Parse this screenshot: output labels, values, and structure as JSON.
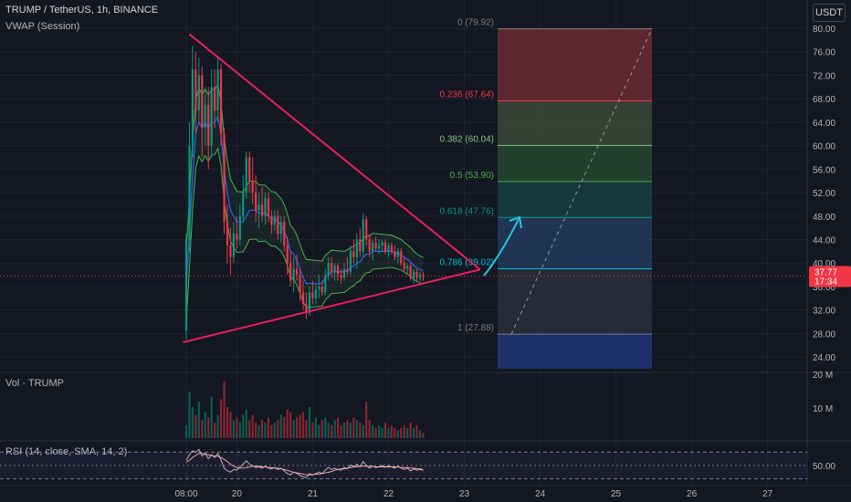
{
  "header": {
    "symbol_line": "TRUMP / TetherUS, 1h, BINANCE",
    "indicator": "VWAP (Session)",
    "currency_button": "USDT"
  },
  "volume_pane": {
    "label": "Vol · TRUMP",
    "ticks": [
      "20 M",
      "10 M"
    ]
  },
  "rsi_pane": {
    "label": "RSI (14, close, SMA, 14, 2)",
    "tick": "50.00"
  },
  "price_axis": {
    "ticks": [
      "80.00",
      "76.00",
      "72.00",
      "68.00",
      "64.00",
      "60.00",
      "56.00",
      "52.00",
      "48.00",
      "44.00",
      "40.00",
      "36.00",
      "32.00",
      "28.00",
      "24.00"
    ]
  },
  "last_price": {
    "price": "37.77",
    "countdown": "17:34",
    "color": "#f23645"
  },
  "time_axis": {
    "ticks": [
      {
        "label": "08:00",
        "pos": 0.0
      },
      {
        "label": "20",
        "pos": 16.0
      },
      {
        "label": "21",
        "pos": 40.0
      },
      {
        "label": "22",
        "pos": 64.0
      },
      {
        "label": "23",
        "pos": 88.0
      },
      {
        "label": "24",
        "pos": 112.0
      },
      {
        "label": "25",
        "pos": 136.0
      },
      {
        "label": "26",
        "pos": 160.0
      },
      {
        "label": "27",
        "pos": 184.0
      }
    ]
  },
  "fib_levels": [
    {
      "label": "0 (79.92)",
      "price": 79.92,
      "color": "#787b86"
    },
    {
      "label": "0.236 (67.64)",
      "price": 67.64,
      "color": "#f23645"
    },
    {
      "label": "0.382 (60.04)",
      "price": 60.04,
      "color": "#81c784"
    },
    {
      "label": "0.5 (53.90)",
      "price": 53.9,
      "color": "#4caf50"
    },
    {
      "label": "0.618 (47.76)",
      "price": 47.76,
      "color": "#089981"
    },
    {
      "label": "0.786 (39.02)",
      "price": 39.02,
      "color": "#00bcd4"
    },
    {
      "label": "1 (27.88)",
      "price": 27.88,
      "color": "#787b86"
    }
  ],
  "fib_bands": [
    {
      "from": 79.92,
      "to": 67.64,
      "color": "#6b2a33"
    },
    {
      "from": 67.64,
      "to": 60.04,
      "color": "#3b4a3a"
    },
    {
      "from": 60.04,
      "to": 53.9,
      "color": "#27462f"
    },
    {
      "from": 53.9,
      "to": 47.76,
      "color": "#17403f"
    },
    {
      "from": 47.76,
      "to": 39.02,
      "color": "#23395d"
    },
    {
      "from": 39.02,
      "to": 27.88,
      "color": "#2c2f3b"
    },
    {
      "from": 27.88,
      "to": 22.0,
      "color": "#1e3577"
    }
  ],
  "chart_data": {
    "type": "candlestick",
    "title": "TRUMP / TetherUS, 1h, BINANCE",
    "ylim": [
      22.0,
      81.0
    ],
    "x_unit": "hours since 08:00",
    "candles": [
      {
        "t": 0,
        "o": 28.5,
        "h": 45.0,
        "l": 27.0,
        "c": 44.0
      },
      {
        "t": 1,
        "o": 44.0,
        "h": 64.0,
        "l": 42.0,
        "c": 60.0
      },
      {
        "t": 2,
        "o": 60.0,
        "h": 77.0,
        "l": 58.0,
        "c": 73.0
      },
      {
        "t": 3,
        "o": 73.0,
        "h": 76.0,
        "l": 62.0,
        "c": 66.0
      },
      {
        "t": 4,
        "o": 66.0,
        "h": 75.0,
        "l": 64.0,
        "c": 72.0
      },
      {
        "t": 5,
        "o": 72.0,
        "h": 73.5,
        "l": 58.0,
        "c": 63.0
      },
      {
        "t": 6,
        "o": 63.0,
        "h": 70.0,
        "l": 60.0,
        "c": 67.0
      },
      {
        "t": 7,
        "o": 67.0,
        "h": 70.0,
        "l": 56.0,
        "c": 60.0
      },
      {
        "t": 8,
        "o": 60.0,
        "h": 73.0,
        "l": 58.0,
        "c": 70.0
      },
      {
        "t": 9,
        "o": 70.0,
        "h": 73.0,
        "l": 63.0,
        "c": 66.0
      },
      {
        "t": 10,
        "o": 66.0,
        "h": 75.0,
        "l": 64.0,
        "c": 73.0
      },
      {
        "t": 11,
        "o": 73.0,
        "h": 74.0,
        "l": 60.0,
        "c": 62.0
      },
      {
        "t": 12,
        "o": 62.0,
        "h": 63.0,
        "l": 45.0,
        "c": 47.0
      },
      {
        "t": 13,
        "o": 47.0,
        "h": 50.0,
        "l": 40.0,
        "c": 43.0
      },
      {
        "t": 14,
        "o": 43.0,
        "h": 46.0,
        "l": 38.0,
        "c": 41.0
      },
      {
        "t": 15,
        "o": 41.0,
        "h": 47.0,
        "l": 40.0,
        "c": 45.0
      },
      {
        "t": 16,
        "o": 45.0,
        "h": 48.0,
        "l": 42.5,
        "c": 44.0
      },
      {
        "t": 17,
        "o": 44.0,
        "h": 50.0,
        "l": 43.0,
        "c": 48.0
      },
      {
        "t": 18,
        "o": 48.0,
        "h": 55.0,
        "l": 47.0,
        "c": 52.0
      },
      {
        "t": 19,
        "o": 52.0,
        "h": 59.0,
        "l": 51.0,
        "c": 58.0
      },
      {
        "t": 20,
        "o": 58.0,
        "h": 59.0,
        "l": 52.0,
        "c": 54.0
      },
      {
        "t": 21,
        "o": 54.0,
        "h": 58.0,
        "l": 50.0,
        "c": 52.0
      },
      {
        "t": 22,
        "o": 52.0,
        "h": 55.0,
        "l": 47.0,
        "c": 49.0
      },
      {
        "t": 23,
        "o": 49.0,
        "h": 52.0,
        "l": 46.0,
        "c": 50.0
      },
      {
        "t": 24,
        "o": 50.0,
        "h": 53.0,
        "l": 47.0,
        "c": 48.0
      },
      {
        "t": 25,
        "o": 48.0,
        "h": 52.0,
        "l": 46.5,
        "c": 51.0
      },
      {
        "t": 26,
        "o": 51.0,
        "h": 52.0,
        "l": 47.0,
        "c": 48.0
      },
      {
        "t": 27,
        "o": 48.0,
        "h": 49.0,
        "l": 45.0,
        "c": 46.5
      },
      {
        "t": 28,
        "o": 46.5,
        "h": 49.0,
        "l": 45.5,
        "c": 48.0
      },
      {
        "t": 29,
        "o": 48.0,
        "h": 49.0,
        "l": 44.0,
        "c": 45.0
      },
      {
        "t": 30,
        "o": 45.0,
        "h": 48.0,
        "l": 43.5,
        "c": 47.0
      },
      {
        "t": 31,
        "o": 47.0,
        "h": 48.0,
        "l": 42.0,
        "c": 43.0
      },
      {
        "t": 32,
        "o": 43.0,
        "h": 44.5,
        "l": 38.0,
        "c": 40.0
      },
      {
        "t": 33,
        "o": 40.0,
        "h": 42.0,
        "l": 36.0,
        "c": 37.0
      },
      {
        "t": 34,
        "o": 37.0,
        "h": 41.0,
        "l": 35.0,
        "c": 39.0
      },
      {
        "t": 35,
        "o": 39.0,
        "h": 41.5,
        "l": 37.0,
        "c": 38.0
      },
      {
        "t": 36,
        "o": 38.0,
        "h": 39.0,
        "l": 33.5,
        "c": 35.0
      },
      {
        "t": 37,
        "o": 35.0,
        "h": 37.0,
        "l": 32.0,
        "c": 33.0
      },
      {
        "t": 38,
        "o": 33.0,
        "h": 35.0,
        "l": 30.5,
        "c": 31.5
      },
      {
        "t": 39,
        "o": 31.5,
        "h": 36.0,
        "l": 31.0,
        "c": 35.0
      },
      {
        "t": 40,
        "o": 35.0,
        "h": 37.0,
        "l": 33.0,
        "c": 34.0
      },
      {
        "t": 41,
        "o": 34.0,
        "h": 36.5,
        "l": 33.0,
        "c": 35.5
      },
      {
        "t": 42,
        "o": 35.5,
        "h": 38.0,
        "l": 34.0,
        "c": 36.0
      },
      {
        "t": 43,
        "o": 36.0,
        "h": 37.0,
        "l": 34.5,
        "c": 35.0
      },
      {
        "t": 44,
        "o": 35.0,
        "h": 39.0,
        "l": 34.5,
        "c": 38.0
      },
      {
        "t": 45,
        "o": 38.0,
        "h": 41.0,
        "l": 37.0,
        "c": 40.0
      },
      {
        "t": 46,
        "o": 40.0,
        "h": 41.0,
        "l": 37.5,
        "c": 38.5
      },
      {
        "t": 47,
        "o": 38.5,
        "h": 40.0,
        "l": 37.0,
        "c": 39.5
      },
      {
        "t": 48,
        "o": 39.5,
        "h": 40.0,
        "l": 37.0,
        "c": 38.0
      },
      {
        "t": 49,
        "o": 38.0,
        "h": 39.0,
        "l": 36.5,
        "c": 37.5
      },
      {
        "t": 50,
        "o": 37.5,
        "h": 40.0,
        "l": 37.0,
        "c": 39.0
      },
      {
        "t": 51,
        "o": 39.0,
        "h": 41.0,
        "l": 38.0,
        "c": 38.5
      },
      {
        "t": 52,
        "o": 38.5,
        "h": 43.0,
        "l": 38.0,
        "c": 42.0
      },
      {
        "t": 53,
        "o": 42.0,
        "h": 44.0,
        "l": 40.0,
        "c": 41.0
      },
      {
        "t": 54,
        "o": 41.0,
        "h": 45.0,
        "l": 39.0,
        "c": 44.0
      },
      {
        "t": 55,
        "o": 44.0,
        "h": 46.0,
        "l": 41.0,
        "c": 42.0
      },
      {
        "t": 56,
        "o": 42.0,
        "h": 48.5,
        "l": 41.0,
        "c": 47.5
      },
      {
        "t": 57,
        "o": 47.5,
        "h": 48.0,
        "l": 43.0,
        "c": 44.0
      },
      {
        "t": 58,
        "o": 44.0,
        "h": 45.0,
        "l": 41.0,
        "c": 42.0
      },
      {
        "t": 59,
        "o": 42.0,
        "h": 44.0,
        "l": 40.5,
        "c": 43.5
      },
      {
        "t": 60,
        "o": 43.5,
        "h": 44.5,
        "l": 42.0,
        "c": 42.5
      },
      {
        "t": 61,
        "o": 42.5,
        "h": 44.0,
        "l": 41.5,
        "c": 43.0
      },
      {
        "t": 62,
        "o": 43.0,
        "h": 44.0,
        "l": 42.0,
        "c": 43.5
      },
      {
        "t": 63,
        "o": 43.5,
        "h": 44.0,
        "l": 41.5,
        "c": 42.0
      },
      {
        "t": 64,
        "o": 42.0,
        "h": 43.5,
        "l": 41.0,
        "c": 43.0
      },
      {
        "t": 65,
        "o": 43.0,
        "h": 43.5,
        "l": 41.5,
        "c": 42.0
      },
      {
        "t": 66,
        "o": 42.0,
        "h": 43.0,
        "l": 40.5,
        "c": 41.0
      },
      {
        "t": 67,
        "o": 41.0,
        "h": 42.5,
        "l": 40.0,
        "c": 42.0
      },
      {
        "t": 68,
        "o": 42.0,
        "h": 42.5,
        "l": 39.5,
        "c": 40.0
      },
      {
        "t": 69,
        "o": 40.0,
        "h": 41.0,
        "l": 38.5,
        "c": 39.0
      },
      {
        "t": 70,
        "o": 39.0,
        "h": 40.0,
        "l": 38.0,
        "c": 39.5
      },
      {
        "t": 71,
        "o": 39.5,
        "h": 40.0,
        "l": 37.0,
        "c": 37.5
      },
      {
        "t": 72,
        "o": 37.5,
        "h": 39.0,
        "l": 36.5,
        "c": 38.5
      },
      {
        "t": 73,
        "o": 38.5,
        "h": 39.0,
        "l": 37.0,
        "c": 37.5
      },
      {
        "t": 74,
        "o": 37.5,
        "h": 38.5,
        "l": 37.0,
        "c": 38.0
      },
      {
        "t": 75,
        "o": 38.0,
        "h": 38.5,
        "l": 37.0,
        "c": 37.77
      }
    ],
    "volume": [
      5,
      18,
      12,
      9,
      14,
      7,
      10,
      8,
      16,
      6,
      9,
      15,
      22,
      12,
      10,
      7,
      8,
      6,
      9,
      11,
      7,
      9,
      6,
      5,
      7,
      6,
      8,
      5,
      6,
      7,
      9,
      8,
      11,
      10,
      7,
      8,
      9,
      10,
      7,
      12,
      6,
      8,
      5,
      7,
      8,
      6,
      5,
      7,
      8,
      5,
      6,
      7,
      6,
      8,
      7,
      6,
      5,
      14,
      7,
      5,
      4,
      5,
      4,
      6,
      4,
      5,
      4,
      3,
      4,
      5,
      4,
      6,
      4,
      5,
      3,
      2
    ],
    "rsi": [
      58,
      66,
      72,
      70,
      74,
      64,
      68,
      60,
      66,
      62,
      68,
      58,
      46,
      42,
      40,
      44,
      43,
      48,
      52,
      57,
      52,
      50,
      47,
      48,
      46,
      49,
      46,
      45,
      47,
      44,
      46,
      42,
      38,
      36,
      40,
      38,
      35,
      33,
      32,
      38,
      36,
      38,
      40,
      38,
      43,
      47,
      44,
      46,
      44,
      43,
      47,
      45,
      51,
      48,
      52,
      48,
      56,
      50,
      46,
      49,
      47,
      48,
      50,
      47,
      50,
      48,
      46,
      49,
      46,
      44,
      46,
      42,
      45,
      43,
      44,
      43
    ],
    "rsi_ma": [
      55,
      58,
      62,
      65,
      68,
      68,
      67,
      66,
      65,
      64,
      64,
      62,
      59,
      56,
      52,
      49,
      47,
      46,
      46,
      47,
      48,
      49,
      49,
      49,
      48,
      48,
      47,
      47,
      46,
      46,
      45,
      44,
      43,
      41,
      40,
      39,
      38,
      37,
      36,
      36,
      36,
      37,
      37,
      38,
      39,
      40,
      41,
      43,
      44,
      45,
      45,
      46,
      47,
      48,
      48,
      49,
      49,
      49,
      49,
      49,
      48,
      48,
      48,
      48,
      48,
      48,
      48,
      48,
      47,
      47,
      47,
      46,
      46,
      45,
      45,
      44
    ],
    "vwap": [
      36,
      45,
      55,
      62,
      64,
      63,
      64,
      63,
      64,
      64,
      65,
      62,
      56,
      52,
      49,
      48,
      47,
      47,
      47,
      48,
      49,
      49,
      49,
      48.5,
      48.5,
      48.5,
      48,
      47.5,
      47.5,
      47,
      46.5,
      45.5,
      44,
      42,
      41.5,
      40.5,
      39,
      37.5,
      36.5,
      36.5,
      36.5,
      36.5,
      36.5,
      36.5,
      37.5,
      38,
      38.5,
      38.5,
      38.5,
      38.5,
      38.5,
      38.8,
      39.2,
      39.5,
      40,
      40.2,
      41,
      41.5,
      41.5,
      42,
      42,
      42,
      42,
      42,
      42,
      42,
      41.8,
      41.6,
      41.4,
      41,
      40.6,
      40.2,
      39.6,
      39.2,
      38.9,
      38.7
    ],
    "trendlines": [
      {
        "from": {
          "t": 1,
          "p": 79.0
        },
        "to": {
          "t": 93,
          "p": 38.9
        }
      },
      {
        "from": {
          "t": -1,
          "p": 26.5
        },
        "to": {
          "t": 93,
          "p": 38.9
        }
      }
    ]
  }
}
